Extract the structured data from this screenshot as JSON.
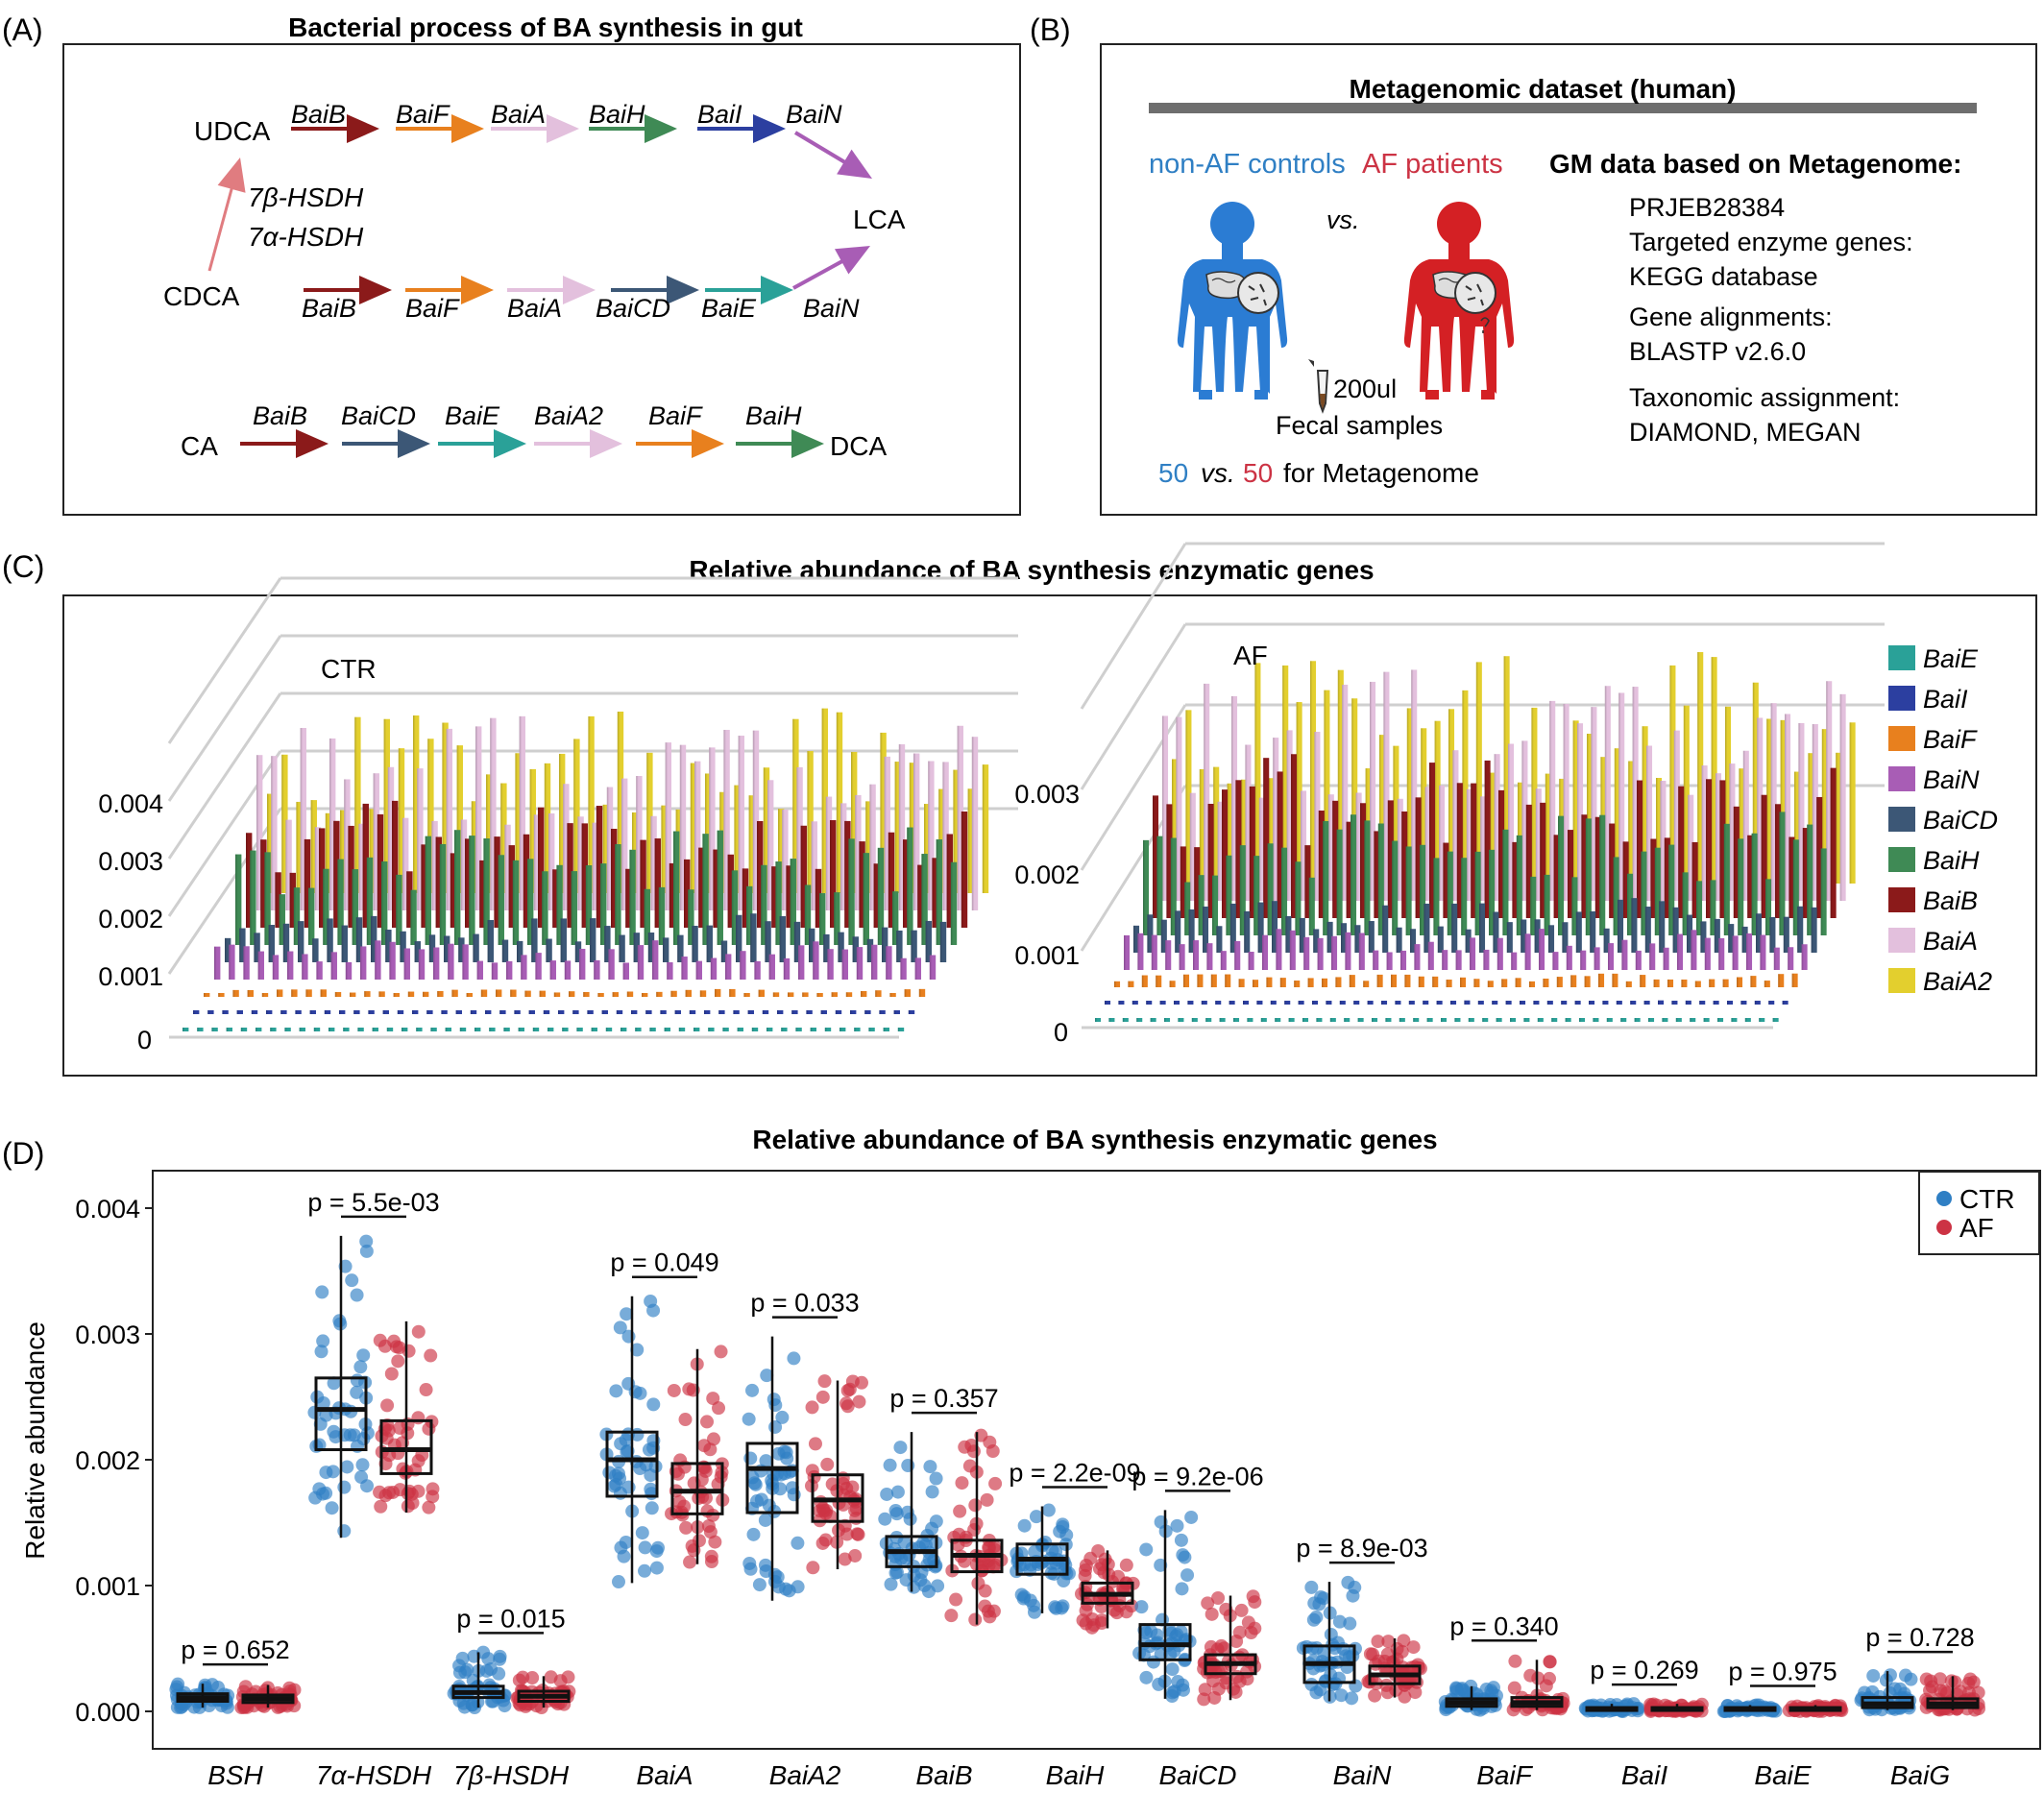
{
  "panels": {
    "a": {
      "letter": "(A)",
      "title": "Bacterial  process of BA synthesis in gut",
      "compounds": {
        "udca": "UDCA",
        "cdca": "CDCA",
        "lca": "LCA",
        "ca": "CA",
        "dca": "DCA"
      },
      "hsdh_7b": "7β-HSDH",
      "hsdh_7a": "7α-HSDH",
      "row_udca": [
        "BaiB",
        "BaiF",
        "BaiA",
        "BaiH",
        "BaiI",
        "BaiN"
      ],
      "row_cdca": [
        "BaiB",
        "BaiF",
        "BaiA",
        "BaiCD",
        "BaiE",
        "BaiN"
      ],
      "row_ca": [
        "BaiB",
        "BaiCD",
        "BaiE",
        "BaiA2",
        "BaiF",
        "BaiH"
      ]
    },
    "b": {
      "letter": "(B)",
      "title": "Metagenomic dataset (human)",
      "controls": "non-AF controls",
      "patients": "AF patients",
      "vs": "vs.",
      "volume": "200ul",
      "fecal": "Fecal samples",
      "n_ctrl": "50",
      "n_af": "50",
      "vs2": "vs.",
      "for_meta": "for Metagenome",
      "info_title": "GM data based on Metagenome:",
      "info": [
        "PRJEB28384",
        "Targeted enzyme genes:",
        "KEGG database",
        "Gene alignments:",
        "BLASTP v2.6.0",
        "Taxonomic assignment:",
        "DIAMOND, MEGAN"
      ]
    },
    "c": {
      "letter": "(C)",
      "title": "Relative abundance of BA synthesis enzymatic genes",
      "left_label": "CTR",
      "right_label": "AF",
      "left_ticks": [
        "0.004",
        "0.003",
        "0.002",
        "0.001",
        "0"
      ],
      "right_ticks": [
        "0.003",
        "0.002",
        "0.001",
        "0"
      ]
    },
    "d": {
      "letter": "(D)"
    }
  },
  "colors": {
    "BaiE": "#2aa198",
    "BaiI": "#2c3fa0",
    "BaiF": "#e8801e",
    "BaiN": "#a85db5",
    "BaiCD": "#3c5776",
    "BaiH": "#3f8a55",
    "BaiB": "#8b1a1a",
    "BaiA": "#e3c0dd",
    "BaiA2": "#e3cf2e",
    "ctr": "#2f7fc4",
    "af": "#cc3344",
    "hsdh_arrow": "#e07c80"
  },
  "chart_data": [
    {
      "type": "bar",
      "title": "Relative abundance of BA synthesis enzymatic genes",
      "subtitle": "CTR",
      "yticks": [
        "0",
        "0.001",
        "0.002",
        "0.003",
        "0.004"
      ],
      "legend_position": "right",
      "series": [
        {
          "name": "BaiE",
          "values": [
            2e-05
          ]
        },
        {
          "name": "BaiI",
          "values": [
            3e-05
          ]
        },
        {
          "name": "BaiF",
          "values": [
            8e-05
          ]
        },
        {
          "name": "BaiN",
          "values": [
            0.0004
          ]
        },
        {
          "name": "BaiCD",
          "values": [
            0.0005
          ]
        },
        {
          "name": "BaiH",
          "values": [
            0.0012
          ]
        },
        {
          "name": "BaiB",
          "values": [
            0.0013
          ]
        },
        {
          "name": "BaiA",
          "values": [
            0.002
          ]
        },
        {
          "name": "BaiA2",
          "values": [
            0.0019
          ]
        }
      ]
    },
    {
      "type": "bar",
      "subtitle": "AF",
      "yticks": [
        "0",
        "0.001",
        "0.002",
        "0.003"
      ],
      "series": [
        {
          "name": "BaiE",
          "values": [
            2e-05
          ]
        },
        {
          "name": "BaiI",
          "values": [
            3e-05
          ]
        },
        {
          "name": "BaiF",
          "values": [
            0.0001
          ]
        },
        {
          "name": "BaiN",
          "values": [
            0.0003
          ]
        },
        {
          "name": "BaiCD",
          "values": [
            0.0004
          ]
        },
        {
          "name": "BaiH",
          "values": [
            0.0009
          ]
        },
        {
          "name": "BaiB",
          "values": [
            0.0012
          ]
        },
        {
          "name": "BaiA",
          "values": [
            0.0017
          ]
        },
        {
          "name": "BaiA2",
          "values": [
            0.0017
          ]
        }
      ]
    },
    {
      "type": "box",
      "title": "Relative abundance of BA synthesis enzymatic genes",
      "ylabel": "Relative abundance",
      "ylim": [
        0,
        0.0043
      ],
      "yticks": [
        "0.000",
        "0.001",
        "0.002",
        "0.003",
        "0.004"
      ],
      "legend": [
        "CTR",
        "AF"
      ],
      "legend_position": "top-right",
      "categories": [
        "BSH",
        "7α-HSDH",
        "7β-HSDH",
        "BaiA",
        "BaiA2",
        "BaiB",
        "BaiH",
        "BaiCD",
        "BaiN",
        "BaiF",
        "BaiI",
        "BaiE",
        "BaiG"
      ],
      "pvalues": [
        "p = 0.652",
        "p = 5.5e-03",
        "p = 0.015",
        "p = 0.049",
        "p = 0.033",
        "p = 0.357",
        "p = 2.2e-09",
        "p = 9.2e-06",
        "p = 8.9e-03",
        "p = 0.340",
        "p = 0.269",
        "p = 0.975",
        "p = 0.728"
      ],
      "series": [
        {
          "name": "CTR",
          "boxes": [
            [
              3e-05,
              8e-05,
              0.00011,
              0.00014,
              0.00022
            ],
            [
              0.00138,
              0.00208,
              0.0024,
              0.00265,
              0.00378
            ],
            [
              3e-05,
              0.00011,
              0.00015,
              0.0002,
              0.00047
            ],
            [
              0.00102,
              0.00171,
              0.002,
              0.00222,
              0.0033
            ],
            [
              0.00088,
              0.00158,
              0.00193,
              0.00213,
              0.00298
            ],
            [
              0.00095,
              0.00115,
              0.00127,
              0.00139,
              0.00222
            ],
            [
              0.00078,
              0.00109,
              0.00121,
              0.00133,
              0.00163
            ],
            [
              0.0001,
              0.00041,
              0.00053,
              0.00069,
              0.0016
            ],
            [
              8e-05,
              0.00023,
              0.00038,
              0.00052,
              0.00103
            ],
            [
              1e-05,
              4e-05,
              7e-05,
              0.0001,
              0.0002
            ],
            [
              0.0,
              1e-05,
              2e-05,
              3e-05,
              6e-05
            ],
            [
              0.0,
              1e-05,
              2e-05,
              3e-05,
              5e-05
            ],
            [
              1e-05,
              3e-05,
              6e-05,
              0.00011,
              0.00032
            ]
          ]
        },
        {
          "name": "AF",
          "boxes": [
            [
              3e-05,
              7e-05,
              0.0001,
              0.00013,
              0.00021
            ],
            [
              0.00158,
              0.00189,
              0.00208,
              0.00231,
              0.0031
            ],
            [
              3e-05,
              8e-05,
              0.00012,
              0.00016,
              0.00028
            ],
            [
              0.00117,
              0.00157,
              0.00175,
              0.00197,
              0.00288
            ],
            [
              0.00113,
              0.00151,
              0.00168,
              0.00188,
              0.00263
            ],
            [
              0.00069,
              0.00111,
              0.00124,
              0.00136,
              0.00222
            ],
            [
              0.00066,
              0.00086,
              0.00093,
              0.00102,
              0.00128
            ],
            [
              9e-05,
              0.0003,
              0.00038,
              0.00045,
              0.00092
            ],
            [
              0.00011,
              0.00022,
              0.00029,
              0.00036,
              0.00058
            ],
            [
              1e-05,
              4e-05,
              7e-05,
              0.00011,
              0.00041
            ],
            [
              0.0,
              1e-05,
              2e-05,
              3e-05,
              6e-05
            ],
            [
              0.0,
              1e-05,
              2e-05,
              3e-05,
              5e-05
            ],
            [
              1e-05,
              3e-05,
              6e-05,
              0.0001,
              0.00028
            ]
          ]
        }
      ]
    }
  ]
}
